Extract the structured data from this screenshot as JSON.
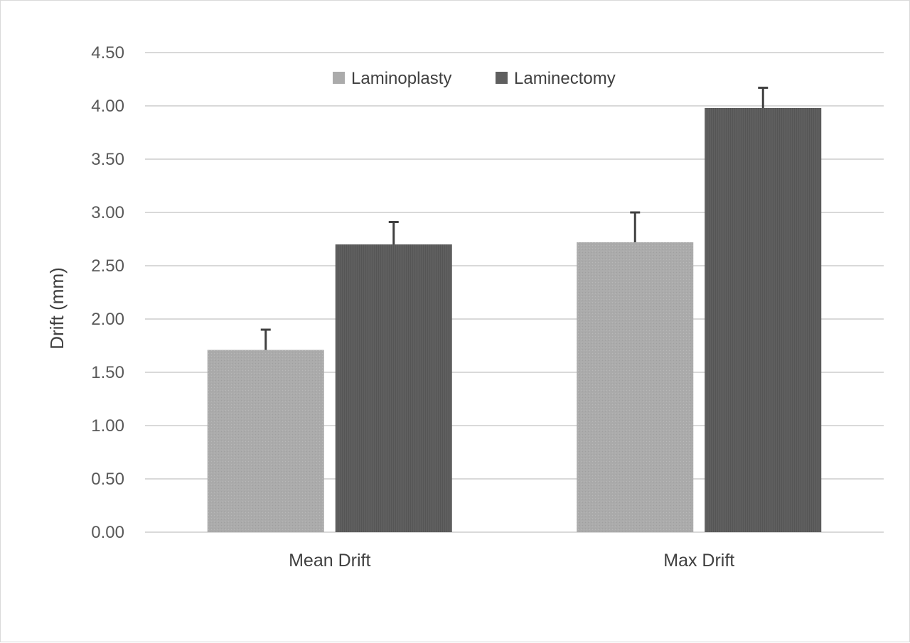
{
  "chart_data": {
    "type": "bar",
    "title": "",
    "xlabel": "",
    "ylabel": "Drift (mm)",
    "ylim": [
      0,
      4.5
    ],
    "yticks": [
      "0.00",
      "0.50",
      "1.00",
      "1.50",
      "2.00",
      "2.50",
      "3.00",
      "3.50",
      "4.00",
      "4.50"
    ],
    "grid": true,
    "legend_position": "top-center",
    "categories": [
      "Mean Drift",
      "Max Drift"
    ],
    "series": [
      {
        "name": "Laminoplasty",
        "color": "#ababab",
        "values": [
          1.71,
          2.72
        ],
        "error": [
          0.19,
          0.28
        ]
      },
      {
        "name": "Laminectomy",
        "color": "#5f5f5f",
        "values": [
          2.7,
          3.98
        ],
        "error": [
          0.21,
          0.19
        ]
      }
    ]
  }
}
